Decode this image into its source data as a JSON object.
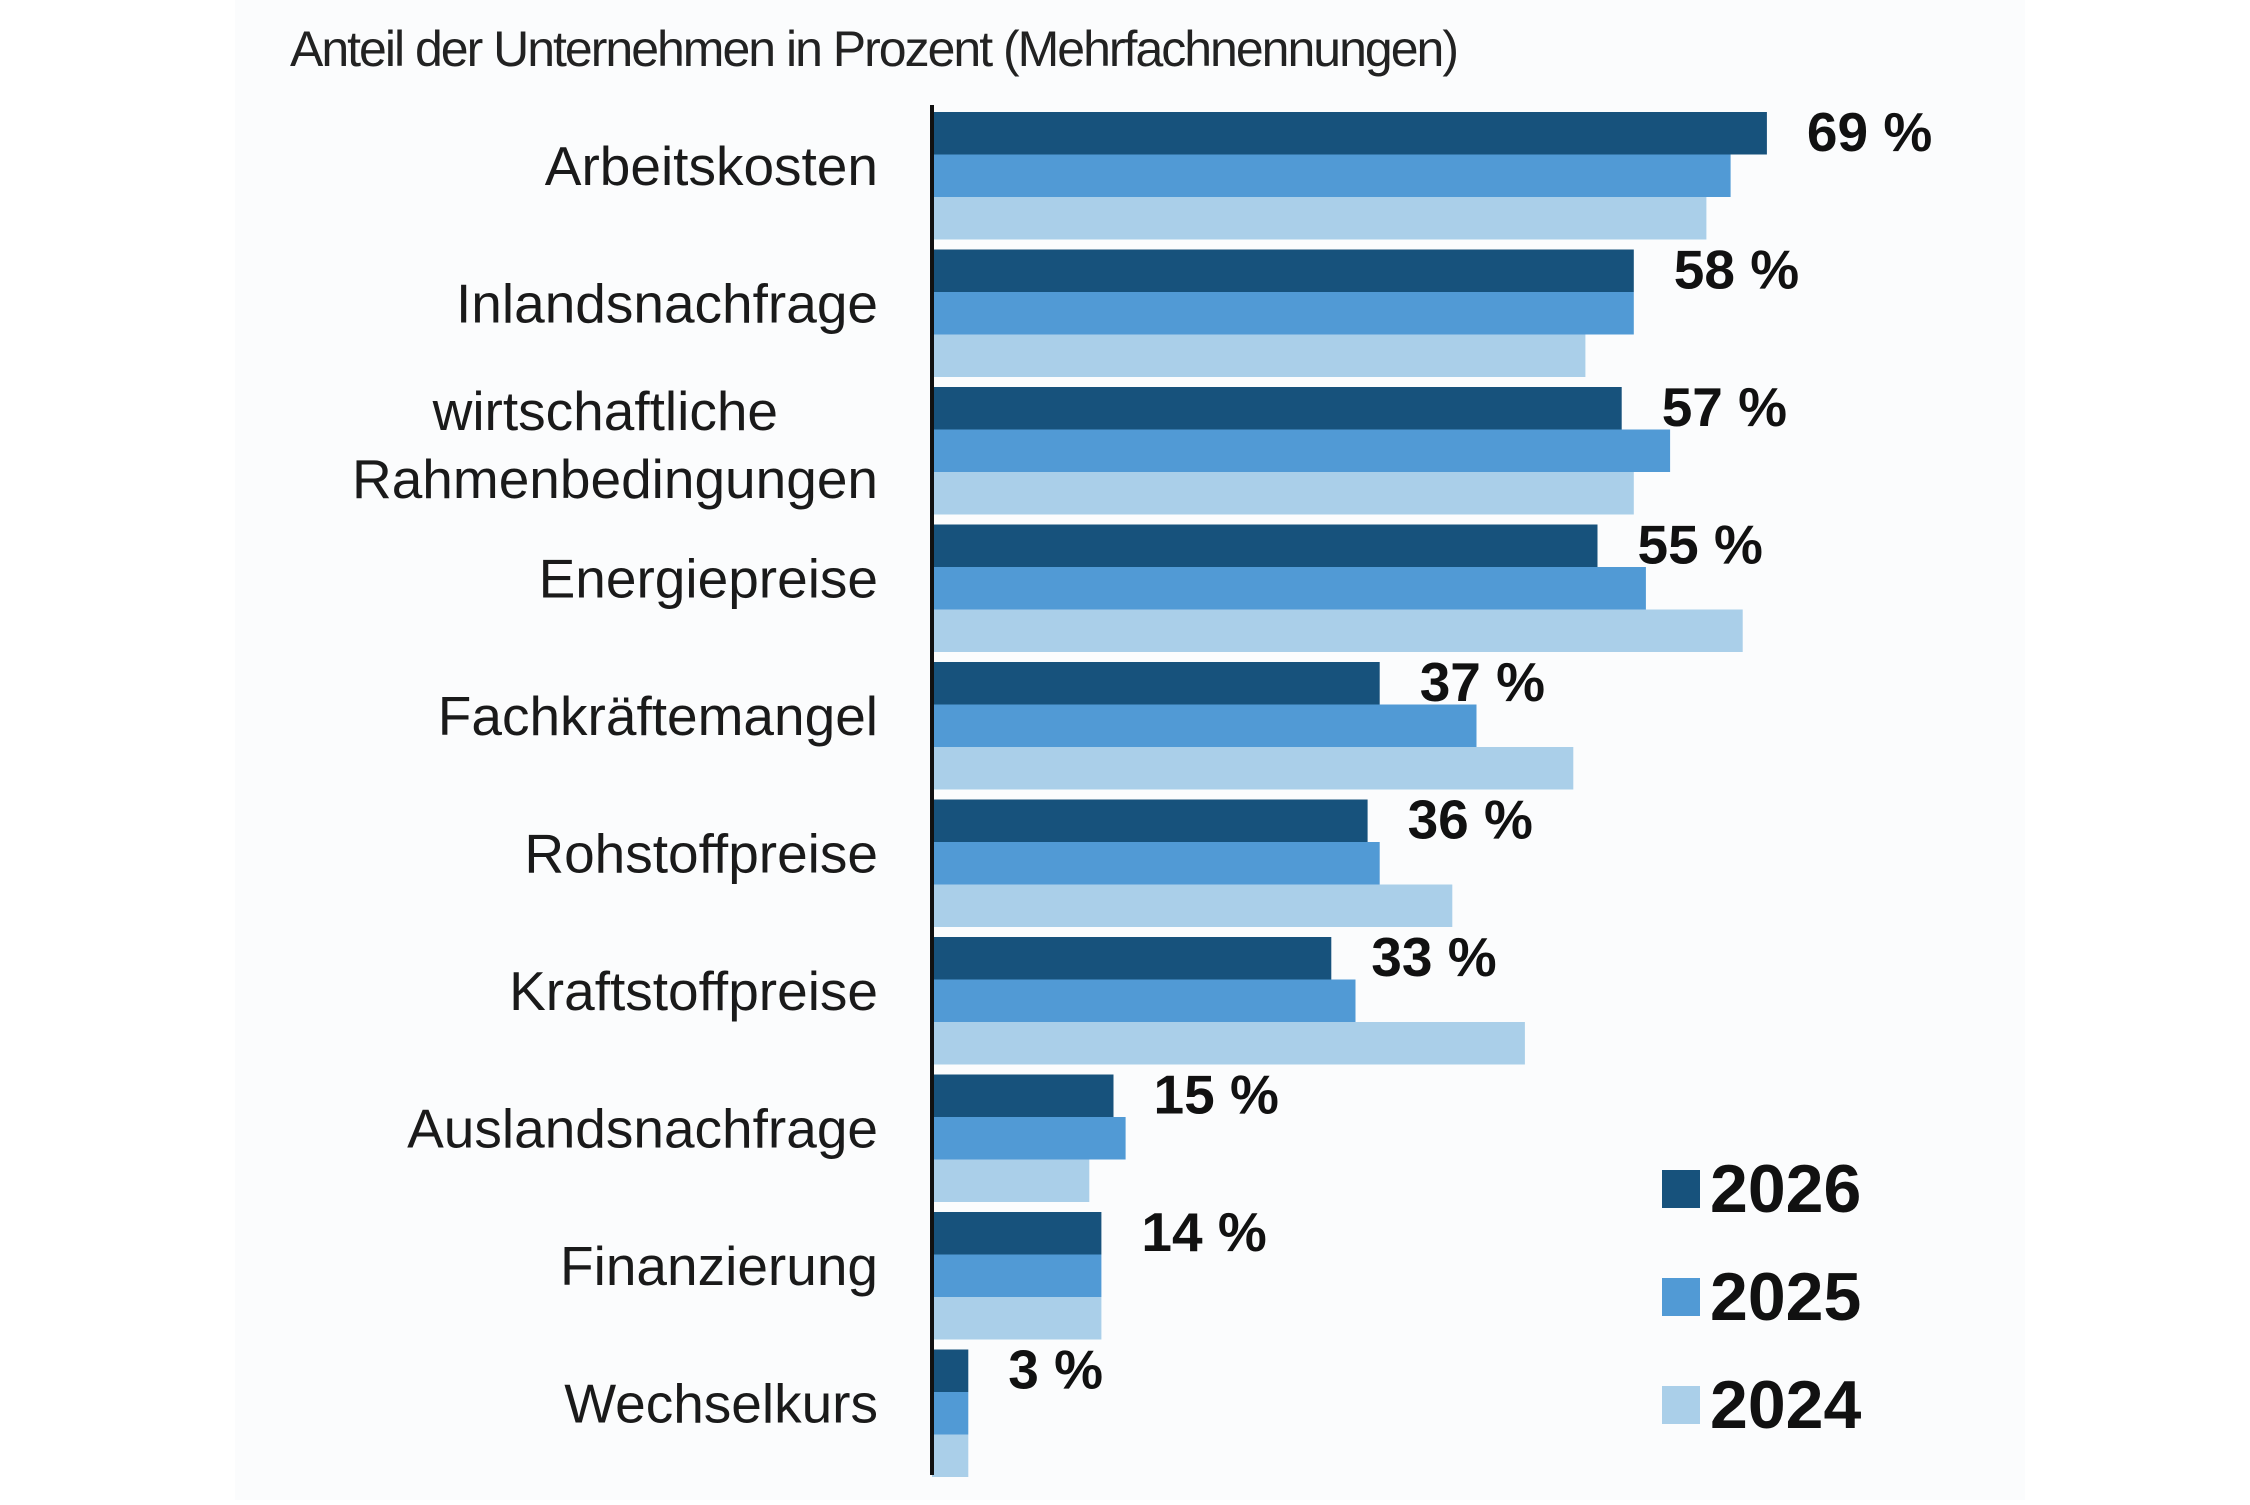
{
  "chart_data": {
    "type": "bar",
    "orientation": "horizontal",
    "subtitle": "Anteil der Unternehmen in Prozent (Mehrfachnennungen)",
    "categories": [
      "Arbeitskosten",
      "Inlandsnachfrage",
      [
        "wirtschaftliche",
        "Rahmenbedingungen"
      ],
      "Energiepreise",
      "Fachkräftemangel",
      "Rohstoffpreise",
      "Kraftstoffpreise",
      "Auslandsnachfrage",
      "Finanzierung",
      "Wechselkurs"
    ],
    "series": [
      {
        "name": "2026",
        "color": "#17527c",
        "values": [
          69,
          58,
          57,
          55,
          37,
          36,
          33,
          15,
          14,
          3
        ]
      },
      {
        "name": "2025",
        "color": "#519ad5",
        "values": [
          66,
          58,
          61,
          59,
          45,
          37,
          35,
          16,
          14,
          3
        ]
      },
      {
        "name": "2024",
        "color": "#aacfe9",
        "values": [
          64,
          54,
          58,
          67,
          53,
          43,
          49,
          13,
          14,
          3
        ]
      }
    ],
    "value_labels": [
      "69 %",
      "58 %",
      "57 %",
      "55 %",
      "37 %",
      "36 %",
      "33 %",
      "15 %",
      "14 %",
      "3 %"
    ],
    "xlim": [
      0,
      80
    ],
    "grid": false,
    "legend_position": "bottom-right"
  }
}
